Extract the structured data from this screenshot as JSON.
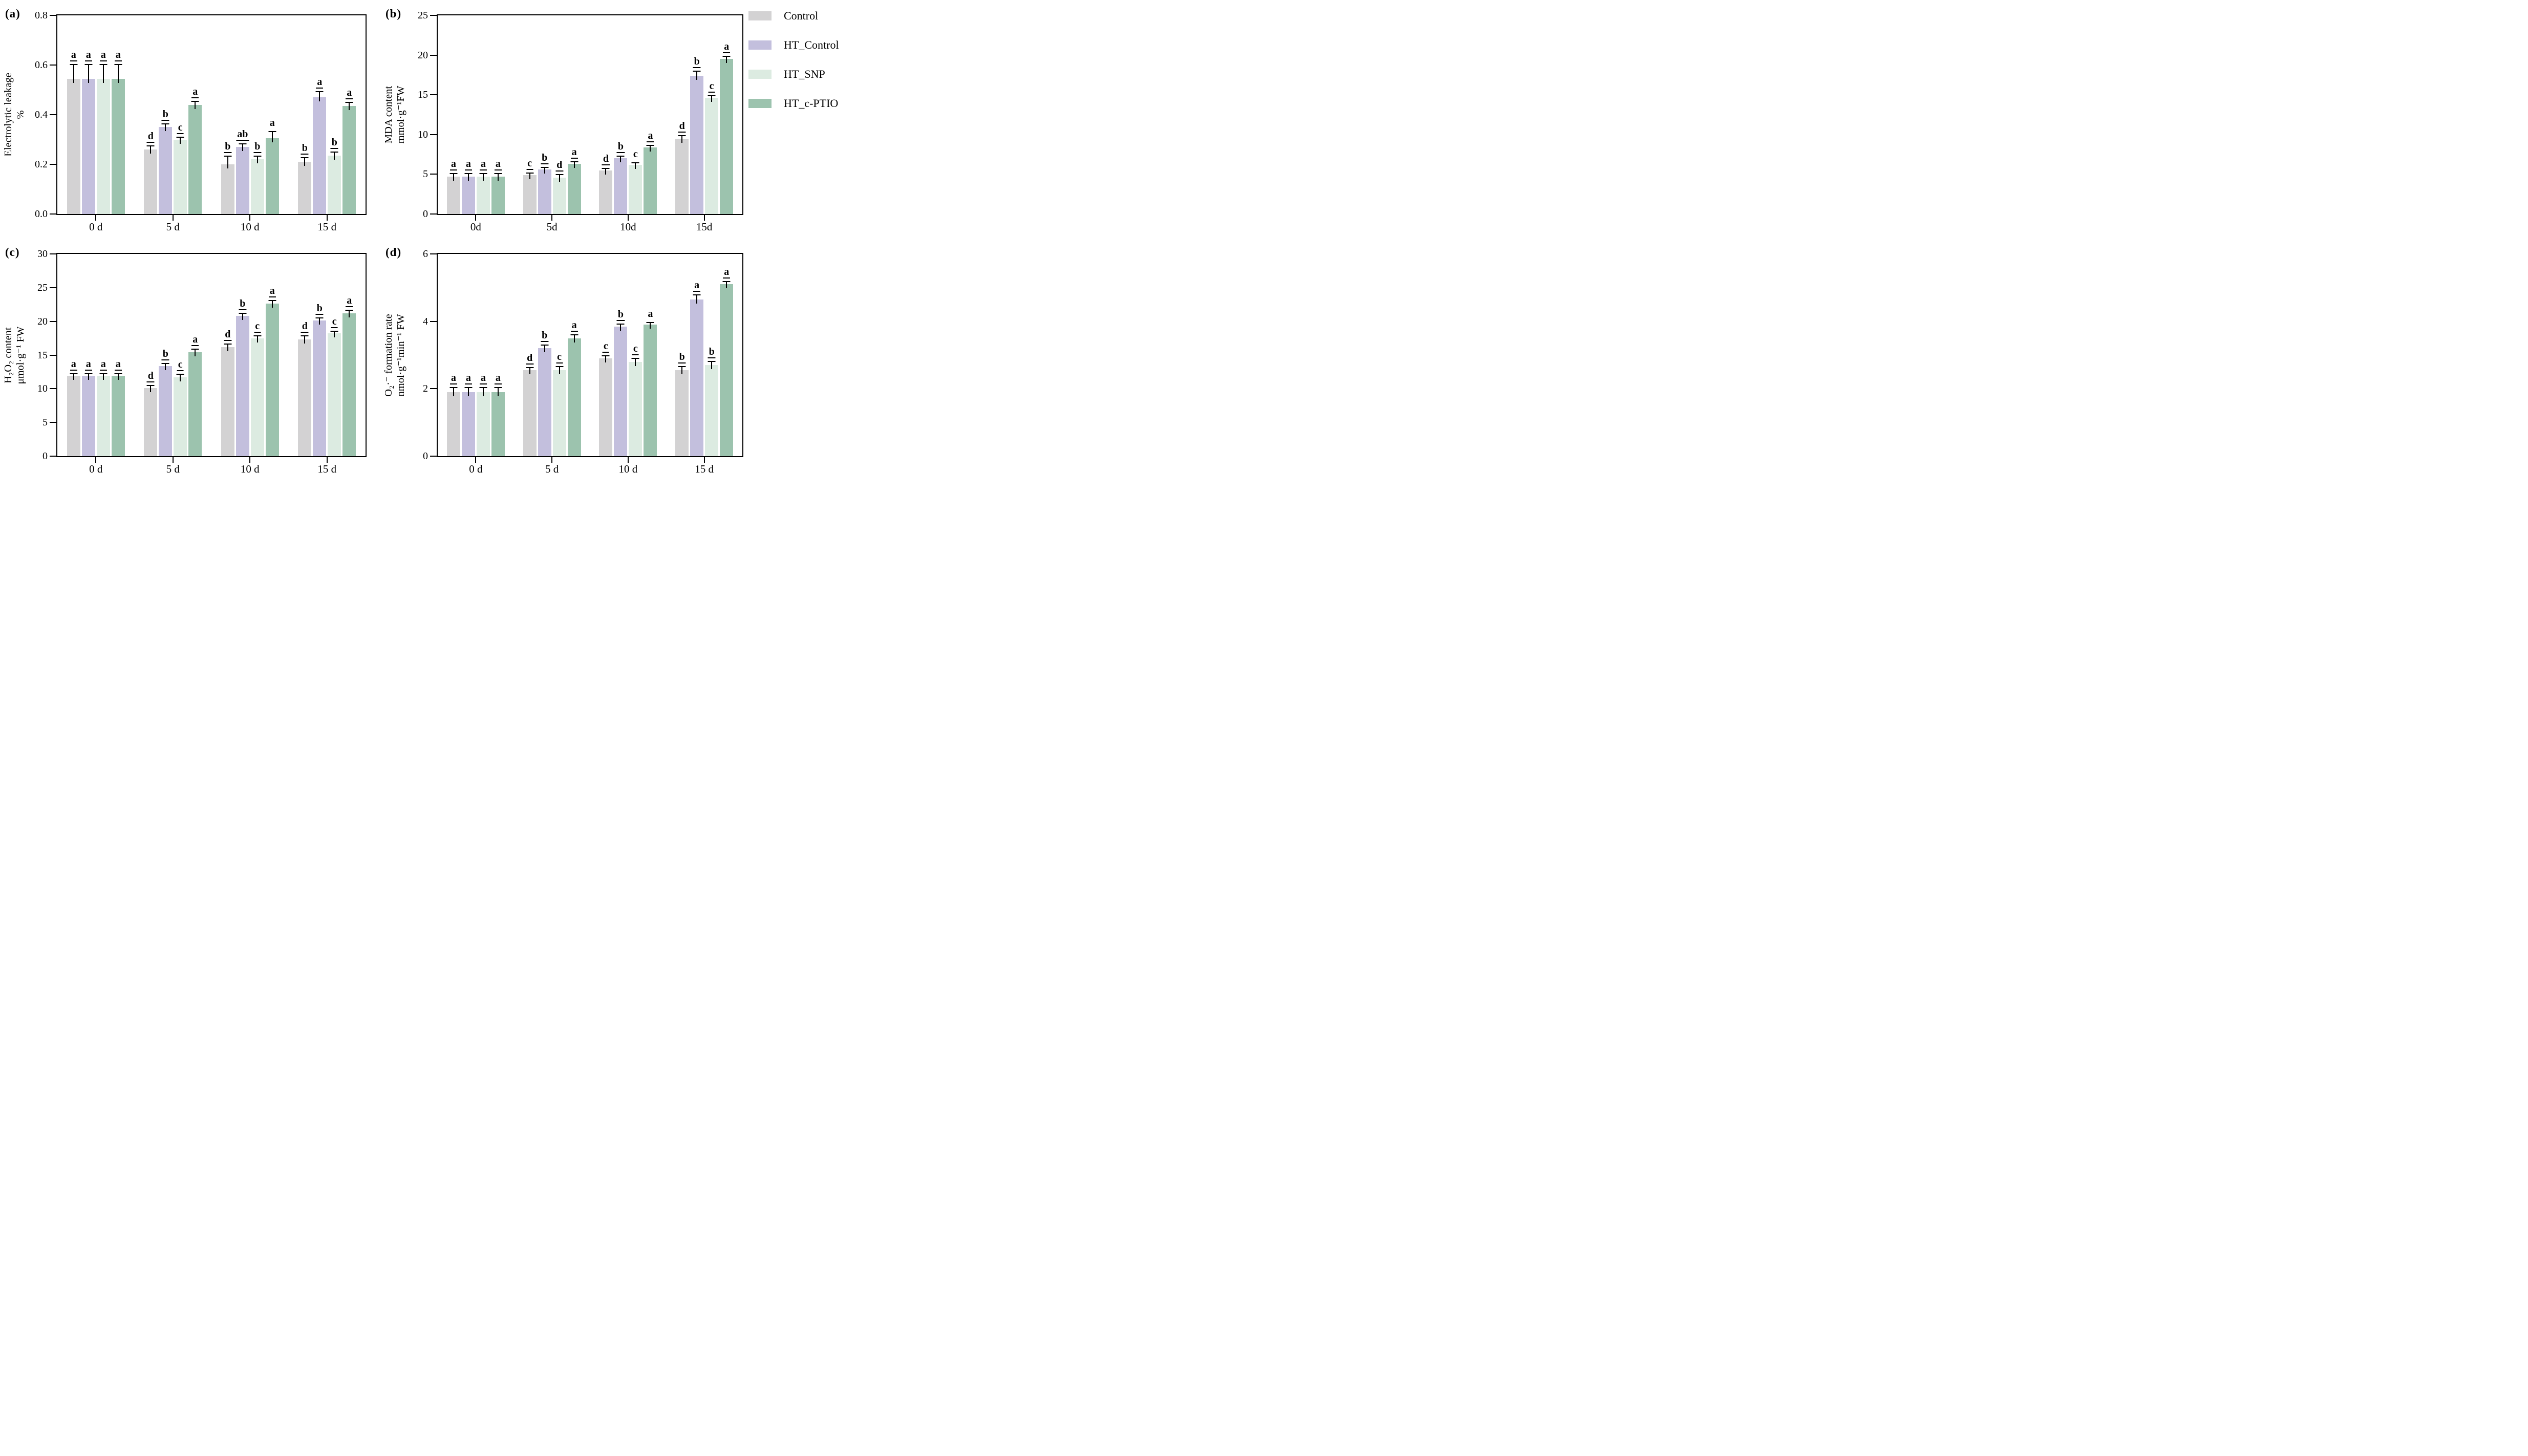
{
  "figure": {
    "panel_tags": {
      "a": "(a)",
      "b": "(b)",
      "c": "(c)",
      "d": "(d)"
    },
    "legend_position": "outside-top-right",
    "background": "#ffffff"
  },
  "colors": {
    "control": "#d3d2d3",
    "ht_control": "#c3bfdd",
    "ht_snp": "#dcebe1",
    "ht_c_ptio": "#9cc3ae",
    "axis": "#000000"
  },
  "legend": {
    "items": [
      {
        "label": "Control",
        "color_key": "control"
      },
      {
        "label": "HT_Control",
        "color_key": "ht_control"
      },
      {
        "label": "HT_SNP",
        "color_key": "ht_snp"
      },
      {
        "label": "HT_c-PTIO",
        "color_key": "ht_c_ptio"
      }
    ]
  },
  "chart_data": [
    {
      "type": "bar",
      "panel": "a",
      "ylabel_lines": [
        "Electrolytic leakage",
        "%"
      ],
      "ylim": [
        0,
        0.8
      ],
      "yticks": [
        0,
        0.2,
        0.4,
        0.6,
        0.8
      ],
      "ytick_labels": [
        "0.0",
        "0.2",
        "0.4",
        "0.6",
        "0.8"
      ],
      "categories": [
        "0 d",
        "5 d",
        "10 d",
        "15 d"
      ],
      "grid": false,
      "series": [
        {
          "name": "Control",
          "color_key": "control",
          "values": [
            0.545,
            0.26,
            0.2,
            0.21
          ],
          "errors": [
            0.055,
            0.012,
            0.03,
            0.015
          ],
          "letters": [
            "a",
            "d",
            "b",
            "b"
          ],
          "letters_underline": [
            true,
            true,
            true,
            true
          ]
        },
        {
          "name": "HT_Control",
          "color_key": "ht_control",
          "values": [
            0.545,
            0.35,
            0.27,
            0.47
          ],
          "errors": [
            0.055,
            0.01,
            0.01,
            0.02
          ],
          "letters": [
            "a",
            "b",
            "ab",
            "a"
          ],
          "letters_underline": [
            true,
            true,
            true,
            true
          ]
        },
        {
          "name": "HT_SNP",
          "color_key": "ht_snp",
          "values": [
            0.545,
            0.3,
            0.22,
            0.235
          ],
          "errors": [
            0.055,
            0.008,
            0.01,
            0.012
          ],
          "letters": [
            "a",
            "c",
            "b",
            "b"
          ],
          "letters_underline": [
            true,
            true,
            true,
            true
          ]
        },
        {
          "name": "HT_c-PTIO",
          "color_key": "ht_c_ptio",
          "values": [
            0.545,
            0.44,
            0.305,
            0.435
          ],
          "errors": [
            0.055,
            0.012,
            0.025,
            0.012
          ],
          "letters": [
            "a",
            "a",
            "a",
            "a"
          ],
          "letters_underline": [
            true,
            true,
            false,
            true
          ]
        }
      ]
    },
    {
      "type": "bar",
      "panel": "b",
      "ylabel_lines": [
        "MDA content",
        "mmol·g⁻¹FW"
      ],
      "ylim": [
        0,
        25
      ],
      "yticks": [
        0,
        5,
        10,
        15,
        20,
        25
      ],
      "ytick_labels": [
        "0",
        "5",
        "10",
        "15",
        "20",
        "25"
      ],
      "categories": [
        "0d",
        "5d",
        "10d",
        "15d"
      ],
      "grid": false,
      "series": [
        {
          "name": "Control",
          "color_key": "control",
          "values": [
            4.7,
            4.9,
            5.5,
            9.5
          ],
          "errors": [
            0.35,
            0.15,
            0.2,
            0.3
          ],
          "letters": [
            "a",
            "c",
            "d",
            "d"
          ],
          "letters_underline": [
            true,
            true,
            true,
            true
          ]
        },
        {
          "name": "HT_Control",
          "color_key": "ht_control",
          "values": [
            4.7,
            5.6,
            7.0,
            17.4
          ],
          "errors": [
            0.35,
            0.15,
            0.25,
            0.5
          ],
          "letters": [
            "a",
            "b",
            "b",
            "b"
          ],
          "letters_underline": [
            true,
            true,
            true,
            true
          ]
        },
        {
          "name": "HT_SNP",
          "color_key": "ht_snp",
          "values": [
            4.7,
            4.6,
            6.2,
            14.6
          ],
          "errors": [
            0.35,
            0.3,
            0.1,
            0.2
          ],
          "letters": [
            "a",
            "d",
            "c",
            "c"
          ],
          "letters_underline": [
            true,
            true,
            false,
            true
          ]
        },
        {
          "name": "HT_c-PTIO",
          "color_key": "ht_c_ptio",
          "values": [
            4.7,
            6.3,
            8.4,
            19.5
          ],
          "errors": [
            0.35,
            0.15,
            0.15,
            0.3
          ],
          "letters": [
            "a",
            "a",
            "a",
            "a"
          ],
          "letters_underline": [
            true,
            true,
            true,
            true
          ]
        }
      ]
    },
    {
      "type": "bar",
      "panel": "c",
      "ylabel_lines": [
        "H₂O₂ content",
        "μmol·g⁻¹ FW"
      ],
      "ylim": [
        0,
        30
      ],
      "yticks": [
        0,
        5,
        10,
        15,
        20,
        25,
        30
      ],
      "ytick_labels": [
        "0",
        "5",
        "10",
        "15",
        "20",
        "25",
        "30"
      ],
      "categories": [
        "0 d",
        "5 d",
        "10 d",
        "15 d"
      ],
      "grid": false,
      "series": [
        {
          "name": "Control",
          "color_key": "control",
          "values": [
            11.9,
            10.1,
            16.2,
            17.3
          ],
          "errors": [
            0.25,
            0.3,
            0.35,
            0.5
          ],
          "letters": [
            "a",
            "d",
            "d",
            "d"
          ],
          "letters_underline": [
            true,
            true,
            true,
            true
          ]
        },
        {
          "name": "HT_Control",
          "color_key": "ht_control",
          "values": [
            11.9,
            13.4,
            20.8,
            20.1
          ],
          "errors": [
            0.25,
            0.3,
            0.3,
            0.3
          ],
          "letters": [
            "a",
            "b",
            "b",
            "b"
          ],
          "letters_underline": [
            true,
            true,
            true,
            true
          ]
        },
        {
          "name": "HT_SNP",
          "color_key": "ht_snp",
          "values": [
            11.9,
            11.7,
            17.5,
            18.2
          ],
          "errors": [
            0.25,
            0.35,
            0.3,
            0.25
          ],
          "letters": [
            "a",
            "c",
            "c",
            "c"
          ],
          "letters_underline": [
            true,
            true,
            true,
            true
          ]
        },
        {
          "name": "HT_c-PTIO",
          "color_key": "ht_c_ptio",
          "values": [
            11.9,
            15.4,
            22.6,
            21.2
          ],
          "errors": [
            0.25,
            0.4,
            0.4,
            0.4
          ],
          "letters": [
            "a",
            "a",
            "a",
            "a"
          ],
          "letters_underline": [
            true,
            true,
            true,
            true
          ]
        }
      ]
    },
    {
      "type": "bar",
      "panel": "d",
      "ylabel_lines": [
        "O₂·⁻ formation rate",
        "nmol·g⁻¹min⁻¹ FW"
      ],
      "ylim": [
        0,
        6
      ],
      "yticks": [
        0,
        2,
        4,
        6
      ],
      "ytick_labels": [
        "0",
        "2",
        "4",
        "6"
      ],
      "categories": [
        "0 d",
        "5 d",
        "10 d",
        "15 d"
      ],
      "grid": false,
      "series": [
        {
          "name": "Control",
          "color_key": "control",
          "values": [
            1.9,
            2.55,
            2.9,
            2.55
          ],
          "errors": [
            0.12,
            0.07,
            0.06,
            0.1
          ],
          "letters": [
            "a",
            "d",
            "c",
            "b"
          ],
          "letters_underline": [
            true,
            true,
            true,
            true
          ]
        },
        {
          "name": "HT_Control",
          "color_key": "ht_control",
          "values": [
            1.9,
            3.2,
            3.85,
            4.65
          ],
          "errors": [
            0.12,
            0.08,
            0.06,
            0.12
          ],
          "letters": [
            "a",
            "b",
            "b",
            "a"
          ],
          "letters_underline": [
            true,
            true,
            true,
            true
          ]
        },
        {
          "name": "HT_SNP",
          "color_key": "ht_snp",
          "values": [
            1.9,
            2.55,
            2.8,
            2.7
          ],
          "errors": [
            0.12,
            0.1,
            0.08,
            0.1
          ],
          "letters": [
            "a",
            "c",
            "c",
            "b"
          ],
          "letters_underline": [
            true,
            true,
            true,
            true
          ]
        },
        {
          "name": "HT_c-PTIO",
          "color_key": "ht_c_ptio",
          "values": [
            1.9,
            3.5,
            3.9,
            5.1
          ],
          "errors": [
            0.12,
            0.08,
            0.05,
            0.06
          ],
          "letters": [
            "a",
            "a",
            "a",
            "a"
          ],
          "letters_underline": [
            true,
            true,
            false,
            true
          ]
        }
      ]
    }
  ]
}
